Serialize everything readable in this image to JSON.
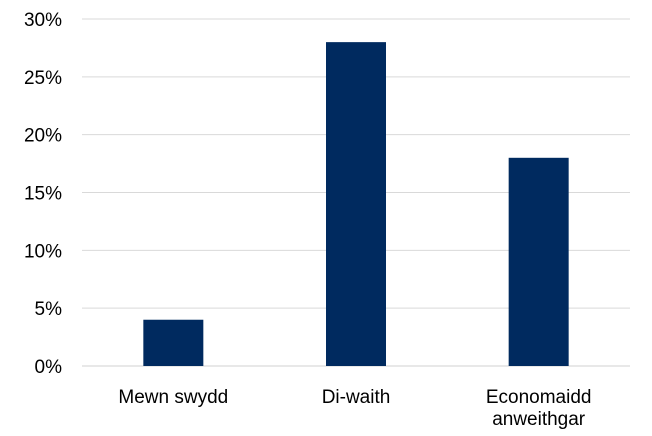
{
  "chart_data": {
    "type": "bar",
    "categories": [
      [
        "Mewn swydd"
      ],
      [
        "Di-waith"
      ],
      [
        "Economaidd",
        "anweithgar"
      ]
    ],
    "values": [
      4,
      28,
      18
    ],
    "ylim": [
      0,
      30
    ],
    "yticks": [
      0,
      5,
      10,
      15,
      20,
      25,
      30
    ],
    "ytick_labels": [
      "0%",
      "5%",
      "10%",
      "15%",
      "20%",
      "25%",
      "30%"
    ],
    "grid": true,
    "bar_color": "#002a5f",
    "title": "",
    "xlabel": "",
    "ylabel": ""
  }
}
